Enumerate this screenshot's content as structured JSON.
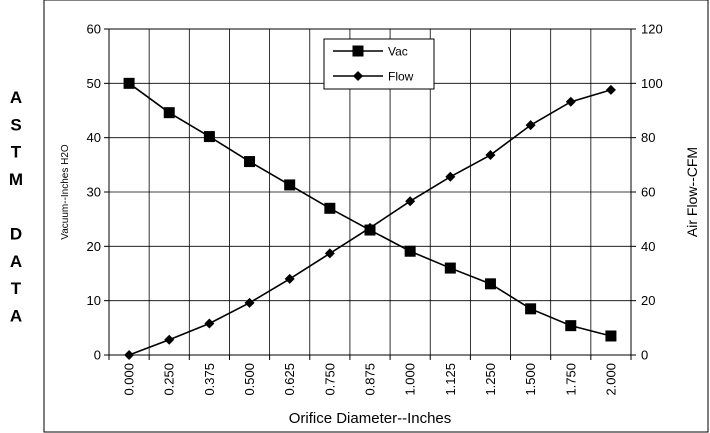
{
  "side_label": [
    "A",
    "S",
    "T",
    "M",
    "",
    "D",
    "A",
    "T",
    "A"
  ],
  "chart_data": {
    "type": "line",
    "xlabel": "Orifice Diameter--Inches",
    "ylabel_left": "Vacuum--Inches H2O",
    "ylabel_right": "Air Flow--CFM",
    "categories": [
      "0.000",
      "0.250",
      "0.375",
      "0.500",
      "0.625",
      "0.750",
      "0.875",
      "1.000",
      "1.125",
      "1.250",
      "1.500",
      "1.750",
      "2.000"
    ],
    "ylim_left": [
      0,
      60
    ],
    "ylim_right": [
      0,
      120
    ],
    "yticks_left": [
      "0",
      "10",
      "20",
      "30",
      "40",
      "50",
      "60"
    ],
    "yticks_right": [
      "0",
      "20",
      "40",
      "60",
      "80",
      "100",
      "120"
    ],
    "grid": true,
    "legend_position": "top-center",
    "series": [
      {
        "name": "Vac",
        "axis": "left",
        "marker": "square",
        "color": "#000000",
        "values": [
          50,
          44.6,
          40.2,
          35.6,
          31.3,
          27,
          23,
          19.1,
          16,
          13.1,
          8.5,
          5.4,
          3.5
        ]
      },
      {
        "name": "Flow",
        "axis": "right",
        "marker": "diamond",
        "color": "#000000",
        "values": [
          0,
          5.6,
          11.6,
          19.2,
          28,
          37.4,
          46.8,
          56.6,
          65.6,
          73.6,
          84.6,
          93.2,
          97.6
        ]
      }
    ]
  }
}
